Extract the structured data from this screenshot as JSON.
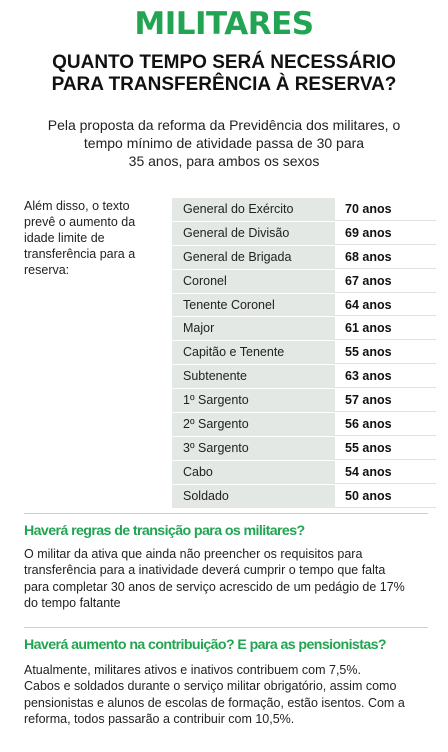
{
  "title": "MILITARES",
  "headline": {
    "line1": "QUANTO TEMPO SERÁ NECESSÁRIO",
    "line2": "PARA TRANSFERÊNCIA À RESERVA?"
  },
  "intro": {
    "line1": "Pela proposta da reforma da Previdência dos militares, o",
    "line2": "tempo mínimo de atividade passa de 30 para",
    "line3": "35 anos, para ambos os sexos"
  },
  "side_note": {
    "line1": "Além disso, o texto",
    "line2": "prevê o aumento da",
    "line3": "idade limite de",
    "line4": "transferência para a",
    "line5": "reserva:"
  },
  "table": {
    "rows": [
      {
        "rank": "General do Exército",
        "age": "70 anos"
      },
      {
        "rank": "General de Divisão",
        "age": "69 anos"
      },
      {
        "rank": "General de Brigada",
        "age": "68 anos"
      },
      {
        "rank": "Coronel",
        "age": "67 anos"
      },
      {
        "rank": "Tenente Coronel",
        "age": "64 anos"
      },
      {
        "rank": "Major",
        "age": "61 anos"
      },
      {
        "rank": "Capitão e Tenente",
        "age": "55 anos"
      },
      {
        "rank": "Subtenente",
        "age": "63 anos"
      },
      {
        "rank": "1º Sargento",
        "age": "57 anos"
      },
      {
        "rank": "2º Sargento",
        "age": "56 anos"
      },
      {
        "rank": "3º Sargento",
        "age": "55 anos"
      },
      {
        "rank": "Cabo",
        "age": "54 anos"
      },
      {
        "rank": "Soldado",
        "age": "50 anos"
      }
    ]
  },
  "section1": {
    "title": "Haverá regras de transição para os militares?",
    "line1": "O militar da ativa que ainda não preencher os requisitos para",
    "line2": "transferência para a inatividade deverá cumprir o tempo que falta",
    "line3": "para completar 30 anos de serviço acrescido de um pedágio de 17%",
    "line4": "do tempo faltante"
  },
  "section2": {
    "title": "Haverá aumento na contribuição? E para as pensionistas?",
    "line1": "Atualmente, militares ativos e inativos contribuem com 7,5%.",
    "line2": "Cabos e soldados durante o serviço militar obrigatório, assim como",
    "line3": "pensionistas e alunos de escolas de formação, estão isentos. Com a",
    "line4": "reforma, todos passarão a contribuir com 10,5%."
  },
  "colors": {
    "accent": "#22a552",
    "table_fill": "#e3e8e4"
  }
}
